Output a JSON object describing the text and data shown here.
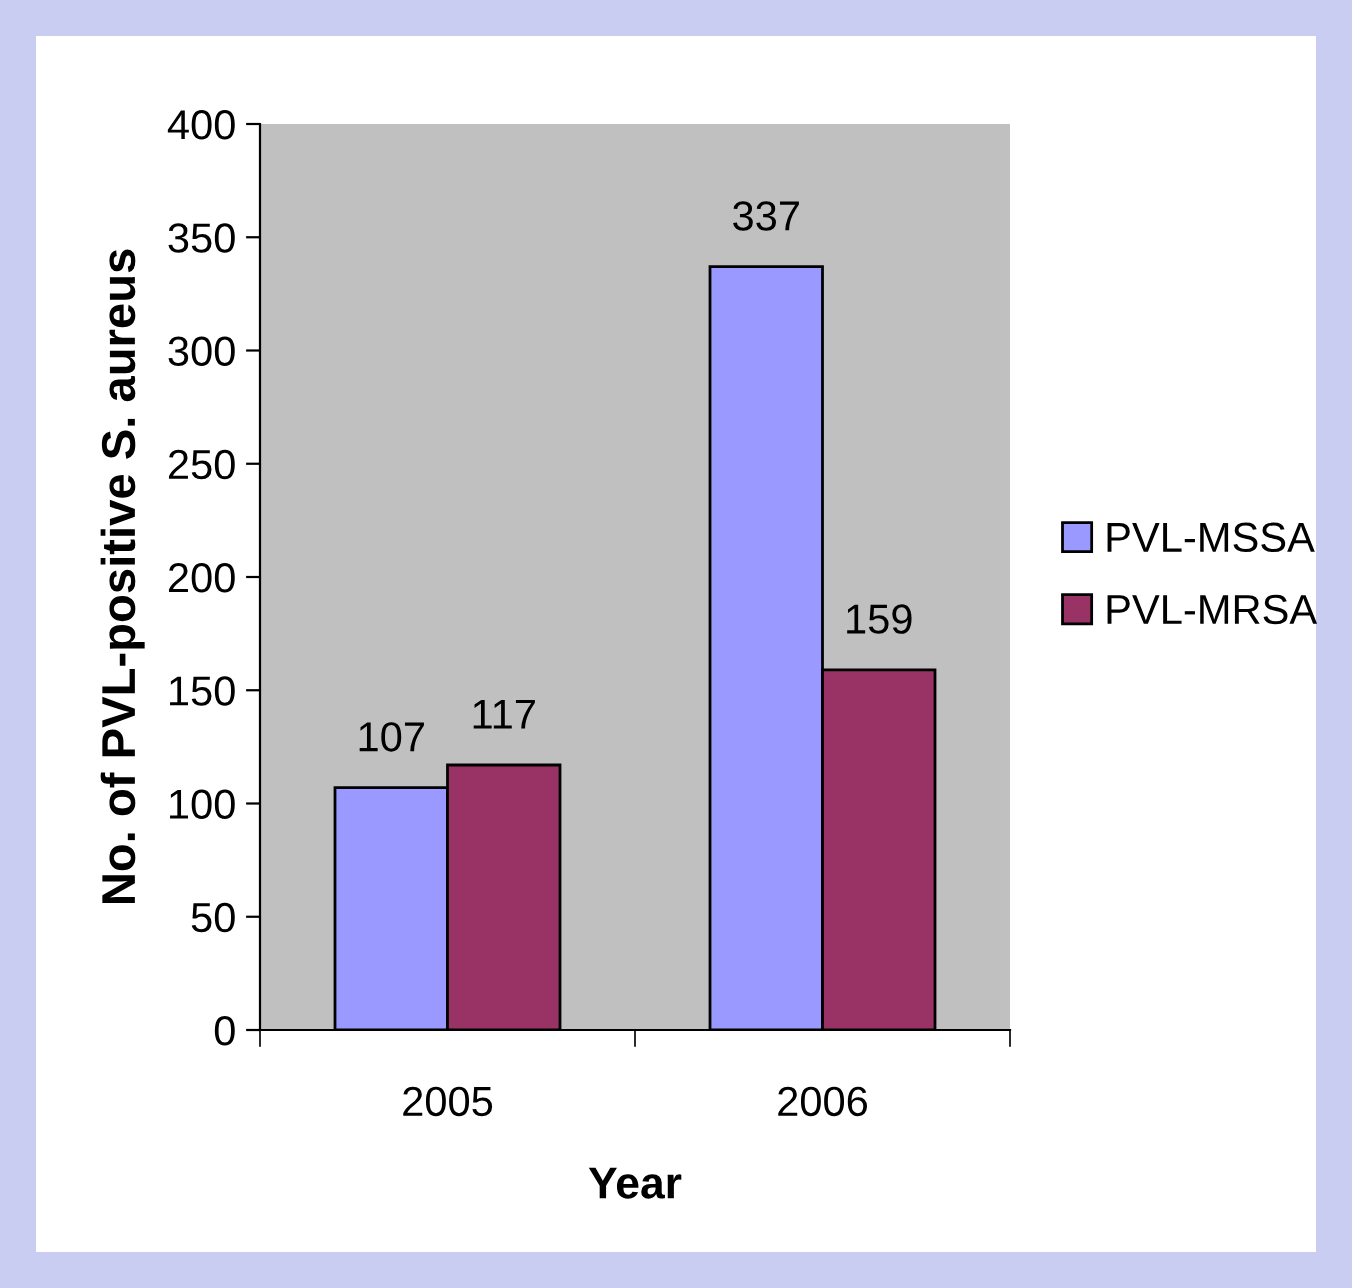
{
  "chart_data": {
    "type": "bar",
    "categories": [
      "2005",
      "2006"
    ],
    "series": [
      {
        "name": "PVL-MSSA",
        "color": "#9999ff",
        "values": [
          107,
          337
        ]
      },
      {
        "name": "PVL-MRSA",
        "color": "#993366",
        "values": [
          117,
          159
        ]
      }
    ],
    "xlabel": "Year",
    "ylabel": "No. of PVL-positive S. aureus",
    "ylim": [
      0,
      400
    ],
    "yticks": [
      0,
      50,
      100,
      150,
      200,
      250,
      300,
      350,
      400
    ],
    "data_labels": true,
    "legend": "right",
    "grid": false
  }
}
